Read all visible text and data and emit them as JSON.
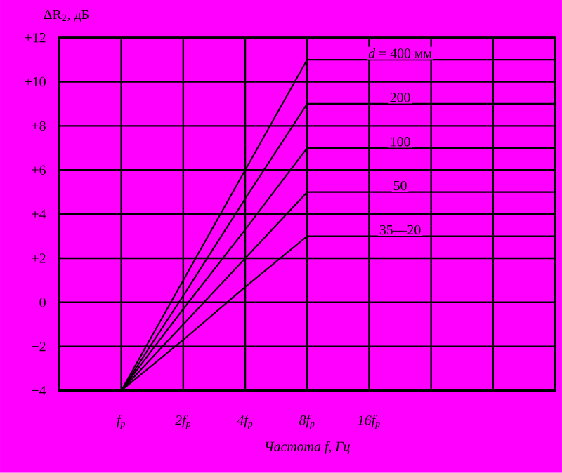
{
  "chart_data": {
    "type": "line",
    "ylabel": "ΔR$_{2}$, дБ",
    "xlabel": "Частота f, Гц",
    "categories": [
      null,
      "f$_{р}$",
      "2f$_{р}$",
      "4f$_{р}$",
      "8f$_{р}$",
      "16f$_{р}$",
      null,
      null,
      null
    ],
    "ylim": [
      -4,
      12
    ],
    "yticks": [
      {
        "value": -4,
        "label": "−4"
      },
      {
        "value": -2,
        "label": "−2"
      },
      0,
      {
        "value": 2,
        "label": "+2"
      },
      {
        "value": 4,
        "label": "+4"
      },
      {
        "value": 6,
        "label": "+6"
      },
      {
        "value": 8,
        "label": "+8"
      },
      {
        "value": 10,
        "label": "+10"
      },
      {
        "value": 12,
        "label": "+12"
      }
    ],
    "grid": true,
    "marker": "none",
    "line_style": "solid",
    "series": [
      {
        "name": "*d* = 400 мм",
        "color": "#000000",
        "values": [
          null,
          -4,
          1,
          6,
          11,
          11,
          11,
          11,
          11
        ]
      },
      {
        "name": "200",
        "color": "#000000",
        "values": [
          null,
          -4,
          0.3,
          4.7,
          9,
          9,
          9,
          9,
          9
        ]
      },
      {
        "name": "100",
        "color": "#000000",
        "values": [
          null,
          -4,
          -0.3,
          3.3,
          7,
          7,
          7,
          7,
          7
        ]
      },
      {
        "name": "50",
        "color": "#000000",
        "values": [
          null,
          -4,
          -1,
          2,
          5,
          5,
          5,
          5,
          5
        ]
      },
      {
        "name": "35—20",
        "color": "#000000",
        "values": [
          null,
          -4,
          -1.7,
          0.7,
          3,
          3,
          3,
          3,
          3
        ]
      }
    ]
  }
}
